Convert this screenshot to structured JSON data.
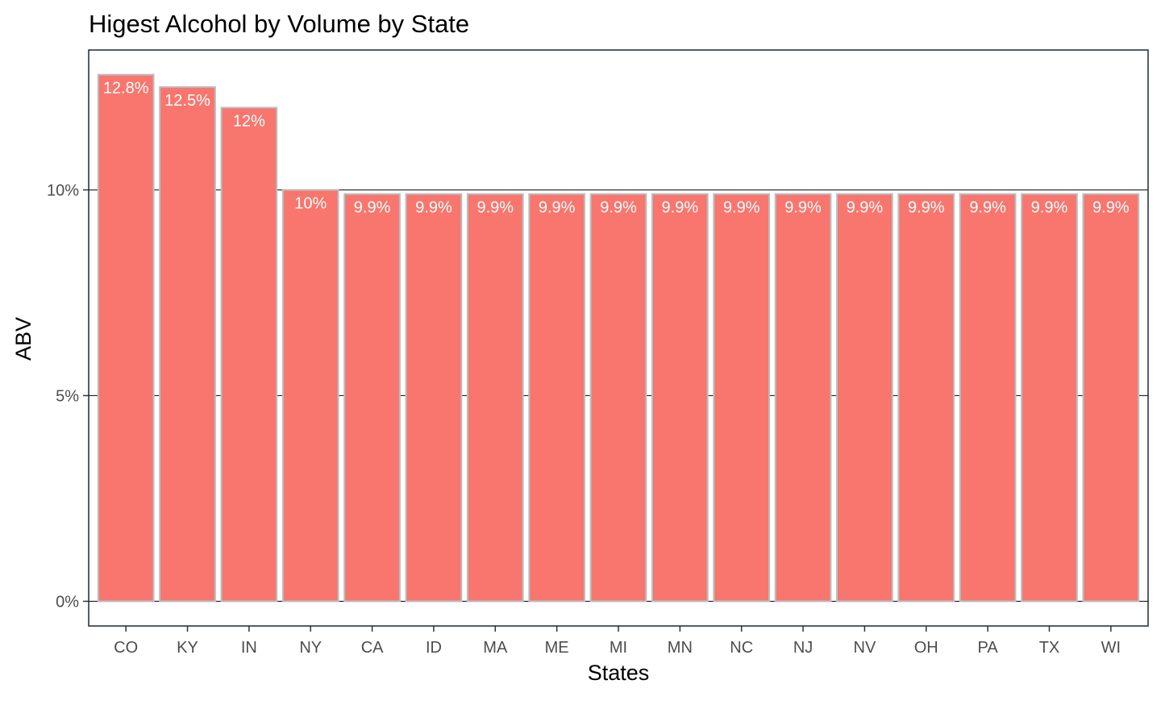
{
  "chart_data": {
    "type": "bar",
    "title": "Higest Alcohol by Volume by State",
    "xlabel": "States",
    "ylabel": "ABV",
    "categories": [
      "CO",
      "KY",
      "IN",
      "NY",
      "CA",
      "ID",
      "MA",
      "ME",
      "MI",
      "MN",
      "NC",
      "NJ",
      "NV",
      "OH",
      "PA",
      "TX",
      "WI"
    ],
    "values": [
      12.8,
      12.5,
      12,
      10,
      9.9,
      9.9,
      9.9,
      9.9,
      9.9,
      9.9,
      9.9,
      9.9,
      9.9,
      9.9,
      9.9,
      9.9,
      9.9
    ],
    "data_labels": [
      "12.8%",
      "12.5%",
      "12%",
      "10%",
      "9.9%",
      "9.9%",
      "9.9%",
      "9.9%",
      "9.9%",
      "9.9%",
      "9.9%",
      "9.9%",
      "9.9%",
      "9.9%",
      "9.9%",
      "9.9%",
      "9.9%"
    ],
    "yticks": [
      0,
      5,
      10
    ],
    "ytick_labels": [
      "0%",
      "5%",
      "10%"
    ],
    "ylim": [
      -0.6,
      13.4
    ],
    "grid": true,
    "legend": "none",
    "colors": {
      "bar_fill": "#F8766D",
      "bar_outline": "#B8BFC2",
      "label_text": "#FFFFFF",
      "gridline": "#000000",
      "panel_border": "#1B2838"
    }
  }
}
